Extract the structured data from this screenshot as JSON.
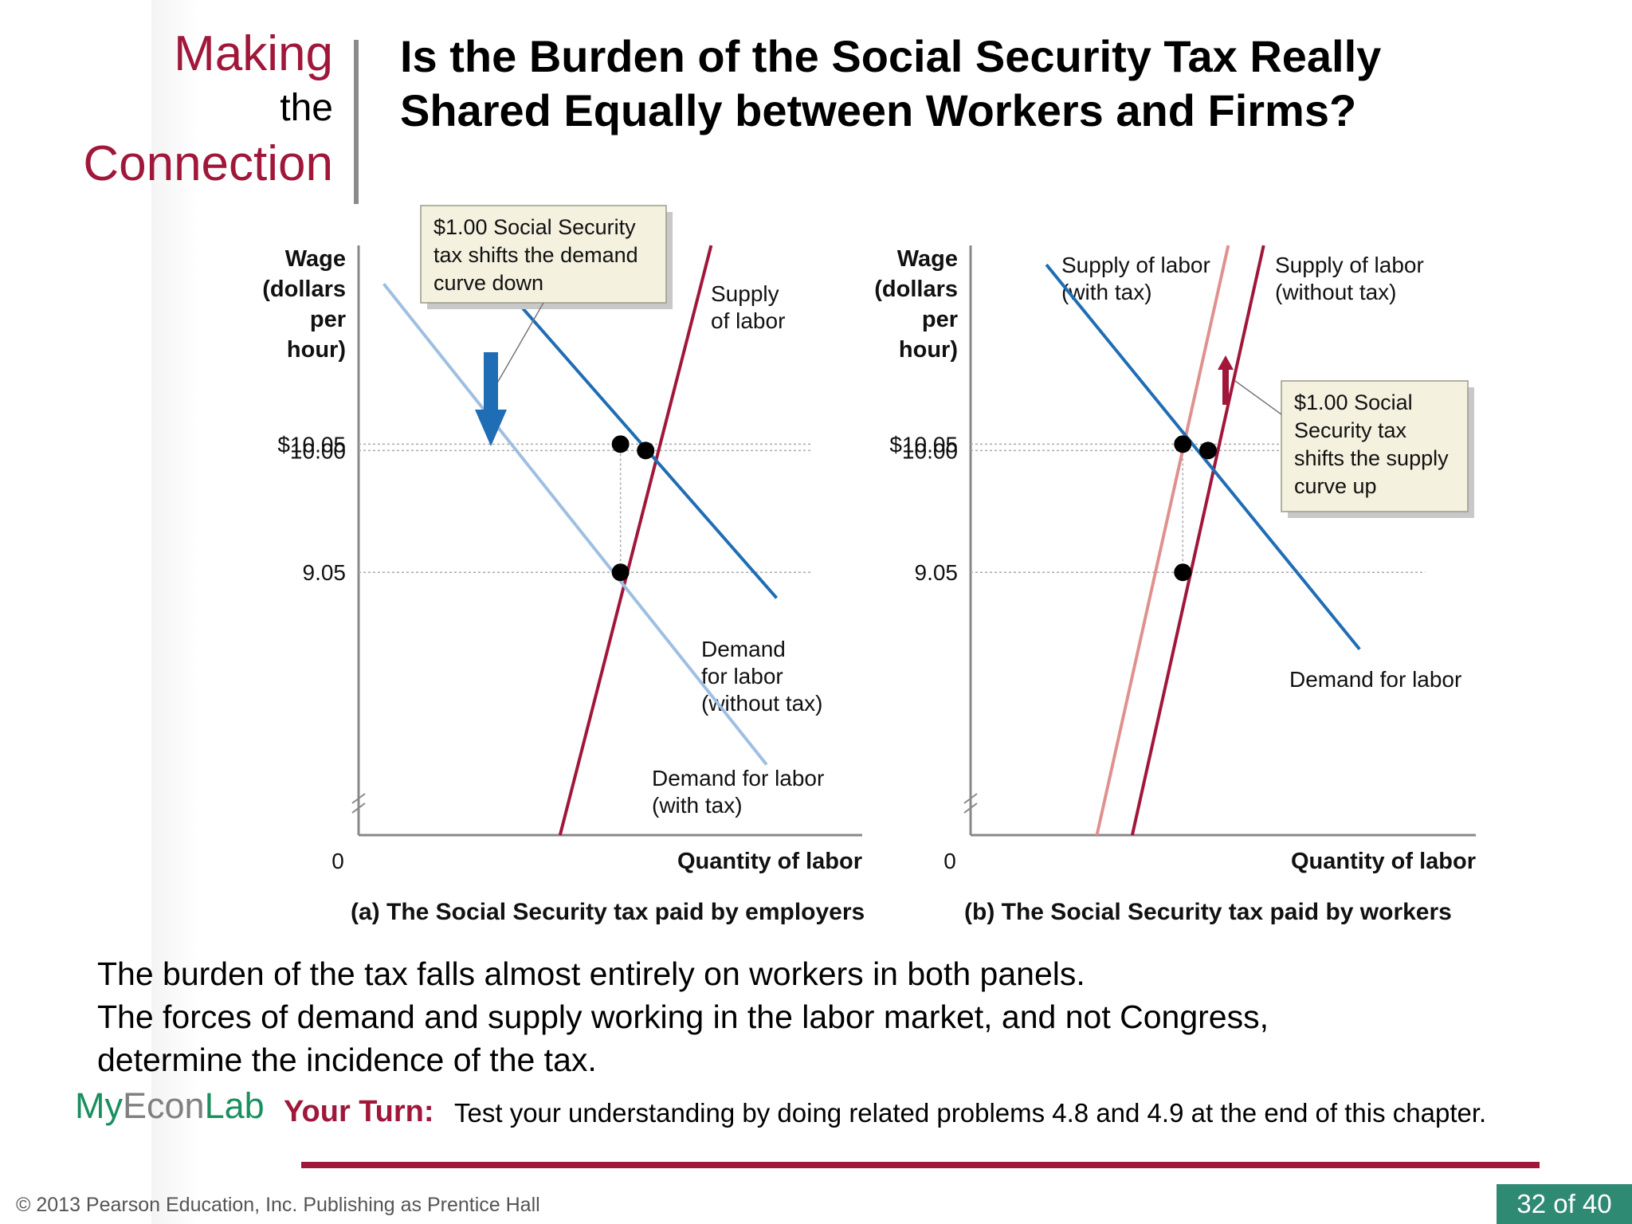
{
  "header": {
    "brand_making": "Making",
    "brand_the": "the",
    "brand_connection": "Connection",
    "title_line1": "Is the Burden of the Social Security Tax Really",
    "title_line2": "Shared Equally between Workers and Firms?"
  },
  "chart_data": [
    {
      "type": "line",
      "title": "(a) The Social Security tax paid by employers",
      "ylabel_lines": [
        "Wage",
        "(dollars",
        "per",
        "hour)"
      ],
      "xlabel": "Quantity of labor",
      "origin_label": "0",
      "y_tick_labels": [
        "$10.05",
        "10.00",
        "9.05"
      ],
      "y_ticks": [
        10.05,
        10.0,
        9.05
      ],
      "x_tick_labels": [],
      "series": [
        {
          "name": "Supply of labor",
          "label_lines": [
            "Supply",
            "of labor"
          ],
          "color": "#a0173a",
          "points": [
            [
              0.4,
              7.0
            ],
            [
              0.7,
              11.6
            ]
          ]
        },
        {
          "name": "Demand for labor (without tax)",
          "label_lines": [
            "Demand",
            "for labor",
            "(without tax)"
          ],
          "color": "#1f6db5",
          "points": [
            [
              0.25,
              11.45
            ],
            [
              0.83,
              8.85
            ]
          ]
        },
        {
          "name": "Demand for labor (with tax)",
          "label_lines": [
            "Demand for labor",
            "(with tax)"
          ],
          "color": "#9fbfe2",
          "points": [
            [
              0.05,
              11.3
            ],
            [
              0.81,
              7.55
            ]
          ]
        }
      ],
      "points": [
        [
          0.52,
          10.05
        ],
        [
          0.57,
          10.0
        ],
        [
          0.52,
          9.05
        ]
      ],
      "annotation": {
        "lines": [
          "$1.00 Social Security",
          "tax shifts the demand",
          "curve down"
        ],
        "arrow": "down",
        "arrow_color": "#1f6db5"
      }
    },
    {
      "type": "line",
      "title": "(b) The Social Security tax paid by workers",
      "ylabel_lines": [
        "Wage",
        "(dollars",
        "per",
        "hour)"
      ],
      "xlabel": "Quantity of labor",
      "origin_label": "0",
      "y_tick_labels": [
        "$10.05",
        "10.00",
        "9.05"
      ],
      "y_ticks": [
        10.05,
        10.0,
        9.05
      ],
      "x_tick_labels": [],
      "series": [
        {
          "name": "Supply of labor (with tax)",
          "label_lines": [
            "Supply of labor",
            "(with tax)"
          ],
          "color": "#e0918f",
          "points": [
            [
              0.25,
              7.0
            ],
            [
              0.51,
              11.6
            ]
          ]
        },
        {
          "name": "Supply of labor (without tax)",
          "label_lines": [
            "Supply of labor",
            "(without tax)"
          ],
          "color": "#a0173a",
          "points": [
            [
              0.32,
              7.0
            ],
            [
              0.58,
              11.6
            ]
          ]
        },
        {
          "name": "Demand for labor",
          "label_lines": [
            "Demand for labor"
          ],
          "color": "#1f6db5",
          "points": [
            [
              0.15,
              11.45
            ],
            [
              0.77,
              8.45
            ]
          ]
        }
      ],
      "points": [
        [
          0.42,
          10.05
        ],
        [
          0.47,
          10.0
        ],
        [
          0.42,
          9.05
        ]
      ],
      "annotation": {
        "lines": [
          "$1.00 Social",
          "Security tax",
          "shifts the supply",
          "curve up"
        ],
        "arrow": "up",
        "arrow_color": "#a0173a"
      }
    }
  ],
  "body": {
    "line1": "The burden of the tax falls almost entirely on workers in both panels.",
    "line2": "The forces of demand and supply working in the labor market, and not Congress,",
    "line3": "determine the incidence of the tax."
  },
  "footer": {
    "myeconlab_my": "My",
    "myeconlab_econ": "Econ",
    "myeconlab_lab": "Lab",
    "your_turn_label": "Your Turn:",
    "your_turn_text": "Test your understanding by doing related problems 4.8 and 4.9 at the end of this chapter.",
    "copyright": "© 2013 Pearson Education, Inc. Publishing as Prentice Hall",
    "page": "32 of 40"
  }
}
